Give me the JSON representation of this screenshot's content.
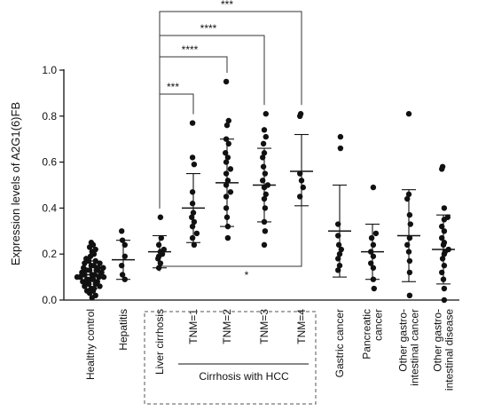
{
  "chart_data": {
    "type": "scatter",
    "ylabel": "Expression levels of A2G1(6)FB",
    "ylim": [
      0,
      1.0
    ],
    "yticks": [
      "0.0",
      "0.2",
      "0.4",
      "0.6",
      "0.8",
      "1.0"
    ],
    "group_bracket_label": "Cirrhosis with HCC",
    "categories": [
      {
        "label": "Healthy control",
        "mean": 0.11,
        "sd_low": 0.05,
        "sd_high": 0.17,
        "points": [
          0.02,
          0.03,
          0.04,
          0.04,
          0.05,
          0.05,
          0.06,
          0.06,
          0.07,
          0.07,
          0.08,
          0.08,
          0.08,
          0.09,
          0.09,
          0.09,
          0.1,
          0.1,
          0.1,
          0.11,
          0.11,
          0.11,
          0.12,
          0.12,
          0.12,
          0.13,
          0.13,
          0.13,
          0.14,
          0.14,
          0.15,
          0.15,
          0.16,
          0.16,
          0.17,
          0.17,
          0.18,
          0.19,
          0.2,
          0.21,
          0.22,
          0.23,
          0.24,
          0.25,
          0.01,
          0.1,
          0.14
        ]
      },
      {
        "label": "Hepatitis",
        "mean": 0.175,
        "sd_low": 0.09,
        "sd_high": 0.26,
        "points": [
          0.09,
          0.11,
          0.15,
          0.19,
          0.24,
          0.26,
          0.3
        ]
      },
      {
        "label": "Liver cirrhosis",
        "mean": 0.21,
        "sd_low": 0.14,
        "sd_high": 0.28,
        "points": [
          0.14,
          0.16,
          0.18,
          0.19,
          0.2,
          0.21,
          0.22,
          0.24,
          0.27,
          0.36
        ]
      },
      {
        "label": "TNM=1",
        "mean": 0.4,
        "sd_low": 0.25,
        "sd_high": 0.55,
        "points": [
          0.24,
          0.27,
          0.29,
          0.32,
          0.34,
          0.36,
          0.38,
          0.42,
          0.47,
          0.59,
          0.62,
          0.77
        ]
      },
      {
        "label": "TNM=2",
        "mean": 0.51,
        "sd_low": 0.32,
        "sd_high": 0.7,
        "points": [
          0.27,
          0.32,
          0.36,
          0.4,
          0.45,
          0.47,
          0.5,
          0.52,
          0.55,
          0.57,
          0.6,
          0.62,
          0.64,
          0.68,
          0.7,
          0.76,
          0.78,
          0.95
        ]
      },
      {
        "label": "TNM=3",
        "mean": 0.5,
        "sd_low": 0.34,
        "sd_high": 0.66,
        "points": [
          0.24,
          0.3,
          0.34,
          0.4,
          0.44,
          0.46,
          0.49,
          0.5,
          0.52,
          0.55,
          0.58,
          0.62,
          0.64,
          0.68,
          0.71,
          0.74,
          0.81
        ]
      },
      {
        "label": "TNM=4",
        "mean": 0.56,
        "sd_low": 0.41,
        "sd_high": 0.72,
        "points": [
          0.45,
          0.49,
          0.52,
          0.55,
          0.8,
          0.81
        ]
      },
      {
        "label": "Gastric cancer",
        "mean": 0.3,
        "sd_low": 0.1,
        "sd_high": 0.5,
        "points": [
          0.13,
          0.15,
          0.18,
          0.2,
          0.22,
          0.24,
          0.28,
          0.33,
          0.66,
          0.71
        ]
      },
      {
        "label": "Pancreatic cancer",
        "mean": 0.21,
        "sd_low": 0.09,
        "sd_high": 0.33,
        "points": [
          0.05,
          0.09,
          0.14,
          0.16,
          0.19,
          0.21,
          0.24,
          0.27,
          0.29,
          0.49
        ]
      },
      {
        "label": "Other gastro-intestinal cancer",
        "mean": 0.28,
        "sd_low": 0.08,
        "sd_high": 0.48,
        "points": [
          0.02,
          0.12,
          0.17,
          0.21,
          0.24,
          0.27,
          0.33,
          0.37,
          0.44,
          0.46,
          0.81
        ]
      },
      {
        "label": "Other gastro-intestinal disease",
        "mean": 0.22,
        "sd_low": 0.07,
        "sd_high": 0.37,
        "points": [
          0.0,
          0.05,
          0.09,
          0.12,
          0.15,
          0.18,
          0.2,
          0.21,
          0.22,
          0.24,
          0.25,
          0.27,
          0.3,
          0.32,
          0.35,
          0.36,
          0.4,
          0.57,
          0.58
        ]
      }
    ],
    "significance": [
      {
        "from": "Liver cirrhosis",
        "to": "TNM=1",
        "label": "***"
      },
      {
        "from": "Liver cirrhosis",
        "to": "TNM=2",
        "label": "****"
      },
      {
        "from": "Liver cirrhosis",
        "to": "TNM=3",
        "label": "****"
      },
      {
        "from": "Liver cirrhosis",
        "to": "TNM=4",
        "label": "***"
      },
      {
        "from": "Liver cirrhosis",
        "to": "TNM=4",
        "label": "*",
        "position": "below"
      }
    ]
  }
}
